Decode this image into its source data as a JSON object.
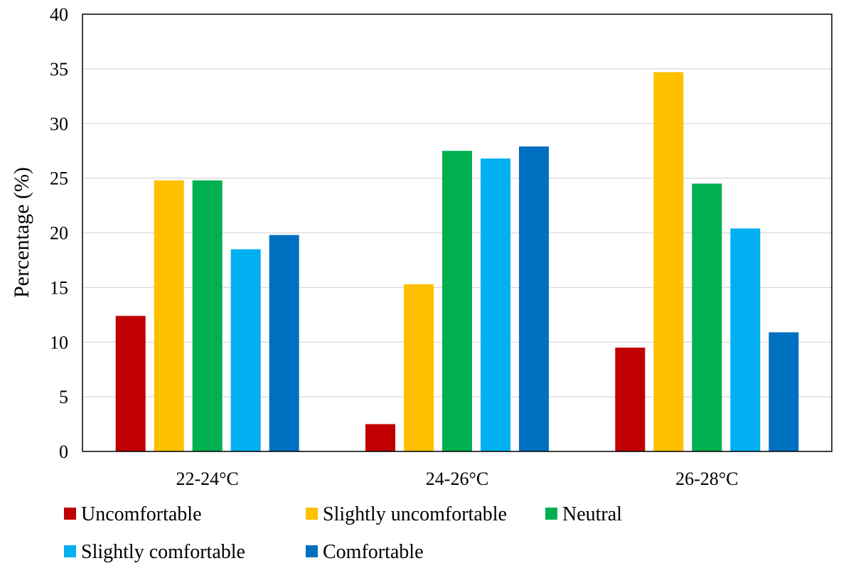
{
  "chart_data": {
    "type": "bar",
    "title": "",
    "xlabel": "",
    "ylabel": "Percentage (%)",
    "ylim": [
      0,
      40
    ],
    "yticks": [
      0,
      5,
      10,
      15,
      20,
      25,
      30,
      35,
      40
    ],
    "grid": true,
    "legend_position": "bottom",
    "categories": [
      "22-24°C",
      "24-26°C",
      "26-28°C"
    ],
    "series": [
      {
        "name": "Uncomfortable",
        "color": "#C00000",
        "values": [
          12.4,
          2.5,
          9.5
        ]
      },
      {
        "name": "Slightly uncomfortable",
        "color": "#FFC000",
        "values": [
          24.8,
          15.3,
          34.7
        ]
      },
      {
        "name": "Neutral",
        "color": "#00B050",
        "values": [
          24.8,
          27.5,
          24.5
        ]
      },
      {
        "name": "Slightly comfortable",
        "color": "#00B0F0",
        "values": [
          18.5,
          26.8,
          20.4
        ]
      },
      {
        "name": "Comfortable",
        "color": "#0070C0",
        "values": [
          19.8,
          27.9,
          10.9
        ]
      }
    ]
  }
}
